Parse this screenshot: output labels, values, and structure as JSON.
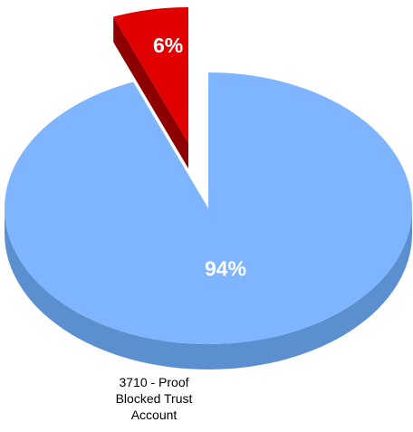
{
  "chart_data": {
    "type": "pie",
    "style": "3d-exploded",
    "slices": [
      {
        "label": "",
        "value": 94,
        "display": "94%",
        "color": "#7fb5ff",
        "side_color": "#5c8fd0",
        "exploded": false
      },
      {
        "label": "",
        "value": 6,
        "display": "6%",
        "color": "#e00000",
        "side_color": "#8e0000",
        "exploded": true
      }
    ],
    "annotation": "3710 - Proof\nBlocked Trust\nAccount"
  }
}
